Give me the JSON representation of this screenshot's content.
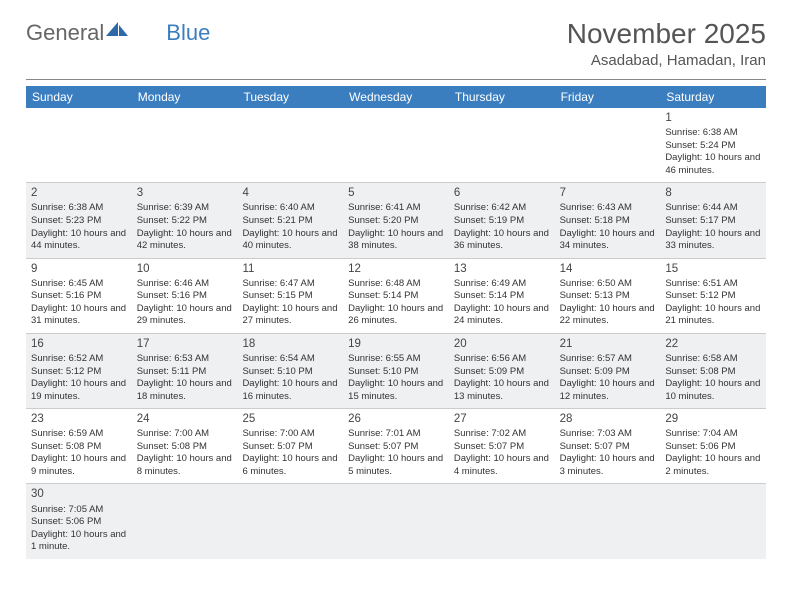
{
  "logo": {
    "part1": "General",
    "part2": "Blue"
  },
  "title": "November 2025",
  "location": "Asadabad, Hamadan, Iran",
  "colors": {
    "header_bg": "#3b7ec0",
    "header_text": "#ffffff",
    "shaded_row": "#eef0f2",
    "text": "#333333",
    "logo_icon": "#2f6aa8"
  },
  "day_names": [
    "Sunday",
    "Monday",
    "Tuesday",
    "Wednesday",
    "Thursday",
    "Friday",
    "Saturday"
  ],
  "weeks": [
    [
      null,
      null,
      null,
      null,
      null,
      null,
      {
        "n": "1",
        "sr": "6:38 AM",
        "ss": "5:24 PM",
        "dl": "10 hours and 46 minutes."
      }
    ],
    [
      {
        "n": "2",
        "sr": "6:38 AM",
        "ss": "5:23 PM",
        "dl": "10 hours and 44 minutes."
      },
      {
        "n": "3",
        "sr": "6:39 AM",
        "ss": "5:22 PM",
        "dl": "10 hours and 42 minutes."
      },
      {
        "n": "4",
        "sr": "6:40 AM",
        "ss": "5:21 PM",
        "dl": "10 hours and 40 minutes."
      },
      {
        "n": "5",
        "sr": "6:41 AM",
        "ss": "5:20 PM",
        "dl": "10 hours and 38 minutes."
      },
      {
        "n": "6",
        "sr": "6:42 AM",
        "ss": "5:19 PM",
        "dl": "10 hours and 36 minutes."
      },
      {
        "n": "7",
        "sr": "6:43 AM",
        "ss": "5:18 PM",
        "dl": "10 hours and 34 minutes."
      },
      {
        "n": "8",
        "sr": "6:44 AM",
        "ss": "5:17 PM",
        "dl": "10 hours and 33 minutes."
      }
    ],
    [
      {
        "n": "9",
        "sr": "6:45 AM",
        "ss": "5:16 PM",
        "dl": "10 hours and 31 minutes."
      },
      {
        "n": "10",
        "sr": "6:46 AM",
        "ss": "5:16 PM",
        "dl": "10 hours and 29 minutes."
      },
      {
        "n": "11",
        "sr": "6:47 AM",
        "ss": "5:15 PM",
        "dl": "10 hours and 27 minutes."
      },
      {
        "n": "12",
        "sr": "6:48 AM",
        "ss": "5:14 PM",
        "dl": "10 hours and 26 minutes."
      },
      {
        "n": "13",
        "sr": "6:49 AM",
        "ss": "5:14 PM",
        "dl": "10 hours and 24 minutes."
      },
      {
        "n": "14",
        "sr": "6:50 AM",
        "ss": "5:13 PM",
        "dl": "10 hours and 22 minutes."
      },
      {
        "n": "15",
        "sr": "6:51 AM",
        "ss": "5:12 PM",
        "dl": "10 hours and 21 minutes."
      }
    ],
    [
      {
        "n": "16",
        "sr": "6:52 AM",
        "ss": "5:12 PM",
        "dl": "10 hours and 19 minutes."
      },
      {
        "n": "17",
        "sr": "6:53 AM",
        "ss": "5:11 PM",
        "dl": "10 hours and 18 minutes."
      },
      {
        "n": "18",
        "sr": "6:54 AM",
        "ss": "5:10 PM",
        "dl": "10 hours and 16 minutes."
      },
      {
        "n": "19",
        "sr": "6:55 AM",
        "ss": "5:10 PM",
        "dl": "10 hours and 15 minutes."
      },
      {
        "n": "20",
        "sr": "6:56 AM",
        "ss": "5:09 PM",
        "dl": "10 hours and 13 minutes."
      },
      {
        "n": "21",
        "sr": "6:57 AM",
        "ss": "5:09 PM",
        "dl": "10 hours and 12 minutes."
      },
      {
        "n": "22",
        "sr": "6:58 AM",
        "ss": "5:08 PM",
        "dl": "10 hours and 10 minutes."
      }
    ],
    [
      {
        "n": "23",
        "sr": "6:59 AM",
        "ss": "5:08 PM",
        "dl": "10 hours and 9 minutes."
      },
      {
        "n": "24",
        "sr": "7:00 AM",
        "ss": "5:08 PM",
        "dl": "10 hours and 8 minutes."
      },
      {
        "n": "25",
        "sr": "7:00 AM",
        "ss": "5:07 PM",
        "dl": "10 hours and 6 minutes."
      },
      {
        "n": "26",
        "sr": "7:01 AM",
        "ss": "5:07 PM",
        "dl": "10 hours and 5 minutes."
      },
      {
        "n": "27",
        "sr": "7:02 AM",
        "ss": "5:07 PM",
        "dl": "10 hours and 4 minutes."
      },
      {
        "n": "28",
        "sr": "7:03 AM",
        "ss": "5:07 PM",
        "dl": "10 hours and 3 minutes."
      },
      {
        "n": "29",
        "sr": "7:04 AM",
        "ss": "5:06 PM",
        "dl": "10 hours and 2 minutes."
      }
    ],
    [
      {
        "n": "30",
        "sr": "7:05 AM",
        "ss": "5:06 PM",
        "dl": "10 hours and 1 minute."
      },
      null,
      null,
      null,
      null,
      null,
      null
    ]
  ],
  "labels": {
    "sunrise": "Sunrise:",
    "sunset": "Sunset:",
    "daylight": "Daylight:"
  }
}
